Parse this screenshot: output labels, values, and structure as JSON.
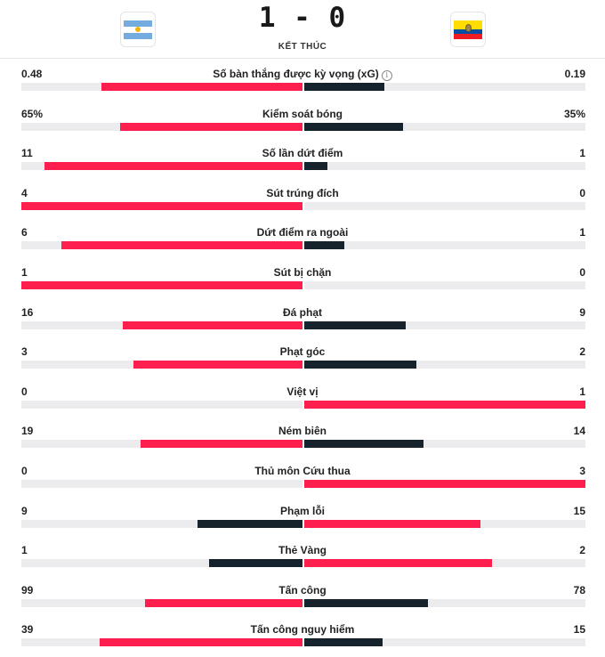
{
  "match": {
    "score": "1 - 0",
    "status": "KẾT THÚC",
    "home_icon": "argentina-flag",
    "away_icon": "ecuador-flag"
  },
  "colors": {
    "winner_bar": "#ff1f4e",
    "loser_bar": "#16232d",
    "track": "#ececef"
  },
  "stats": [
    {
      "label": "Số bàn thắng được kỳ vọng (xG)",
      "home": "0.48",
      "away": "0.19",
      "home_value": 0.48,
      "away_value": 0.19,
      "info_icon": "i"
    },
    {
      "label": "Kiểm soát bóng",
      "home": "65%",
      "away": "35%",
      "home_value": 65,
      "away_value": 35
    },
    {
      "label": "Số lần dứt điểm",
      "home": "11",
      "away": "1",
      "home_value": 11,
      "away_value": 1
    },
    {
      "label": "Sút trúng đích",
      "home": "4",
      "away": "0",
      "home_value": 4,
      "away_value": 0
    },
    {
      "label": "Dứt điểm ra ngoài",
      "home": "6",
      "away": "1",
      "home_value": 6,
      "away_value": 1
    },
    {
      "label": "Sút bị chặn",
      "home": "1",
      "away": "0",
      "home_value": 1,
      "away_value": 0
    },
    {
      "label": "Đá phạt",
      "home": "16",
      "away": "9",
      "home_value": 16,
      "away_value": 9
    },
    {
      "label": "Phạt góc",
      "home": "3",
      "away": "2",
      "home_value": 3,
      "away_value": 2
    },
    {
      "label": "Việt vị",
      "home": "0",
      "away": "1",
      "home_value": 0,
      "away_value": 1
    },
    {
      "label": "Ném biên",
      "home": "19",
      "away": "14",
      "home_value": 19,
      "away_value": 14
    },
    {
      "label": "Thủ môn Cứu thua",
      "home": "0",
      "away": "3",
      "home_value": 0,
      "away_value": 3
    },
    {
      "label": "Phạm lỗi",
      "home": "9",
      "away": "15",
      "home_value": 9,
      "away_value": 15
    },
    {
      "label": "Thẻ Vàng",
      "home": "1",
      "away": "2",
      "home_value": 1,
      "away_value": 2
    },
    {
      "label": "Tấn công",
      "home": "99",
      "away": "78",
      "home_value": 99,
      "away_value": 78
    },
    {
      "label": "Tấn công nguy hiểm",
      "home": "39",
      "away": "15",
      "home_value": 39,
      "away_value": 15
    }
  ]
}
